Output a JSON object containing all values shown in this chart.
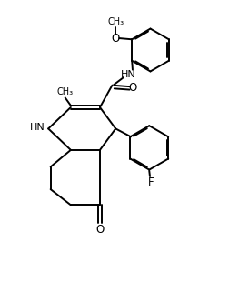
{
  "bg_color": "#ffffff",
  "line_color": "#000000",
  "font_size": 8.0,
  "lw": 1.4,
  "xlim": [
    0,
    10
  ],
  "ylim": [
    0,
    12.5
  ]
}
